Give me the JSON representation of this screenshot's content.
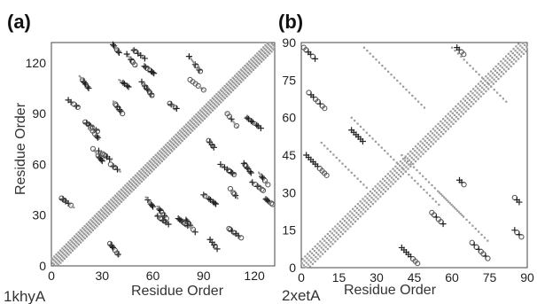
{
  "panels": [
    {
      "letter": "(a)",
      "protein": "1khyA",
      "xlabel": "Residue Order",
      "ylabel": "Residue Order",
      "ticks": [
        "0",
        "30",
        "60",
        "90",
        "120"
      ],
      "tick_values": [
        0,
        30,
        60,
        90,
        120
      ],
      "axis_range": [
        0,
        132
      ]
    },
    {
      "letter": "(b)",
      "protein": "2xetA",
      "xlabel": "Residue Order",
      "ylabel": "Residue Order",
      "ticks": [
        "0",
        "15",
        "30",
        "45",
        "60",
        "75",
        "90"
      ],
      "tick_values": [
        0,
        15,
        30,
        45,
        60,
        75,
        90
      ],
      "axis_range": [
        0,
        90
      ]
    }
  ],
  "colors": {
    "contact": "#9a9a9a",
    "plus": "#222222",
    "circle": "#555555"
  }
}
